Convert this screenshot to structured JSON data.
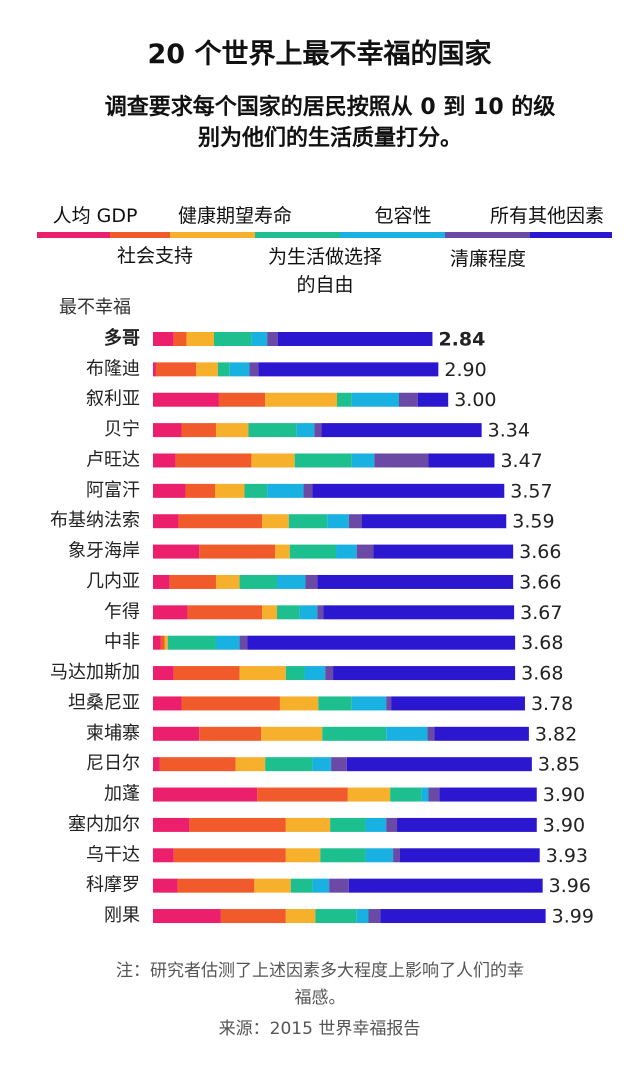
{
  "chart_data": {
    "type": "stacked-bar",
    "orientation": "horizontal",
    "title": "20 个世界上最不幸福的国家",
    "subtitle": "调查要求每个国家的居民按照从 0 到 10 的级别为他们的生活质量打分。",
    "axis_label": "最不幸福",
    "categories": [
      "多哥",
      "布隆迪",
      "叙利亚",
      "贝宁",
      "卢旺达",
      "阿富汗",
      "布基纳法索",
      "象牙海岸",
      "几内亚",
      "乍得",
      "中非",
      "马达加斯加",
      "坦桑尼亚",
      "柬埔寨",
      "尼日尔",
      "加蓬",
      "塞内加尔",
      "乌干达",
      "科摩罗",
      "刚果"
    ],
    "totals": [
      2.84,
      2.9,
      3.0,
      3.34,
      3.47,
      3.57,
      3.59,
      3.66,
      3.66,
      3.67,
      3.68,
      3.68,
      3.78,
      3.82,
      3.85,
      3.9,
      3.9,
      3.93,
      3.96,
      3.99
    ],
    "value_labels": [
      "2.84",
      "2.90",
      "3.00",
      "3.34",
      "3.47",
      "3.57",
      "3.59",
      "3.66",
      "3.66",
      "3.67",
      "3.68",
      "3.68",
      "3.78",
      "3.82",
      "3.85",
      "3.90",
      "3.90",
      "3.93",
      "3.96",
      "3.99"
    ],
    "series": [
      {
        "name": "人均 GDP",
        "color": "#ec1f6c",
        "values": [
          0.21,
          0.03,
          0.67,
          0.29,
          0.23,
          0.33,
          0.26,
          0.47,
          0.17,
          0.35,
          0.08,
          0.21,
          0.29,
          0.47,
          0.07,
          1.06,
          0.37,
          0.21,
          0.25,
          0.69
        ]
      },
      {
        "name": "社会支持",
        "color": "#f15a2a",
        "values": [
          0.13,
          0.41,
          0.47,
          0.35,
          0.77,
          0.3,
          0.85,
          0.77,
          0.47,
          0.76,
          0.04,
          0.67,
          1.0,
          0.63,
          0.77,
          0.92,
          0.98,
          1.14,
          0.78,
          0.66
        ]
      },
      {
        "name": "健康期望寿命",
        "color": "#f6b02c",
        "values": [
          0.28,
          0.22,
          0.73,
          0.33,
          0.44,
          0.3,
          0.27,
          0.15,
          0.24,
          0.15,
          0.03,
          0.47,
          0.39,
          0.62,
          0.3,
          0.43,
          0.45,
          0.35,
          0.37,
          0.3
        ]
      },
      {
        "name": "为生活做选择的自由",
        "color": "#1dbf8e",
        "values": [
          0.38,
          0.12,
          0.15,
          0.49,
          0.58,
          0.23,
          0.39,
          0.47,
          0.38,
          0.23,
          0.49,
          0.19,
          0.34,
          0.65,
          0.48,
          0.32,
          0.36,
          0.46,
          0.22,
          0.42
        ]
      },
      {
        "name": "包容性",
        "color": "#19b1e2",
        "values": [
          0.16,
          0.2,
          0.48,
          0.18,
          0.23,
          0.37,
          0.22,
          0.21,
          0.29,
          0.18,
          0.24,
          0.21,
          0.35,
          0.42,
          0.19,
          0.07,
          0.21,
          0.28,
          0.17,
          0.12
        ]
      },
      {
        "name": "清廉程度",
        "color": "#6b4aa6",
        "values": [
          0.11,
          0.09,
          0.19,
          0.07,
          0.55,
          0.09,
          0.13,
          0.17,
          0.12,
          0.06,
          0.08,
          0.08,
          0.05,
          0.07,
          0.16,
          0.11,
          0.11,
          0.07,
          0.2,
          0.12
        ]
      },
      {
        "name": "所有其他因素",
        "color": "#2b17cf",
        "values": [
          1.57,
          1.83,
          0.31,
          1.63,
          0.67,
          1.95,
          1.47,
          1.42,
          1.99,
          1.94,
          2.72,
          1.85,
          1.36,
          0.96,
          1.88,
          0.99,
          1.42,
          1.42,
          1.97,
          1.68
        ]
      }
    ],
    "notes": [
      "注：研究者估测了上述因素多大程度上影响了人们的幸福感。",
      "来源：2015 世界幸福报告"
    ]
  }
}
